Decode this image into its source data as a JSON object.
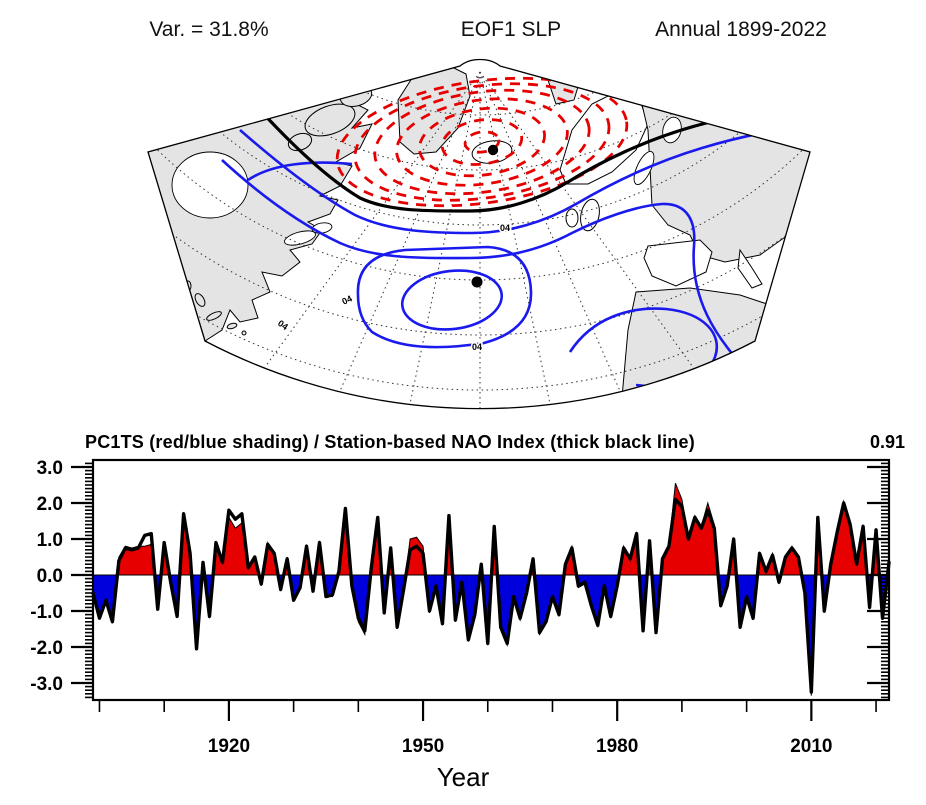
{
  "header": {
    "variance_label": "Var. = 31.8%",
    "title": "EOF1 SLP",
    "period_label": "Annual 1899-2022"
  },
  "map": {
    "contour_label": "04",
    "station_marker_count": 2
  },
  "timeseries": {
    "title": "PC1TS (red/blue shading) / Station-based NAO Index (thick black line)",
    "correlation": "0.91",
    "xlabel": "Year",
    "y_tick_labels": [
      "3.0",
      "2.0",
      "1.0",
      "0.0",
      "-1.0",
      "-2.0",
      "-3.0"
    ],
    "y_tick_values": [
      3,
      2,
      1,
      0,
      -1,
      -2,
      -3
    ],
    "x_tick_labels": [
      "1920",
      "1950",
      "1980",
      "2010"
    ],
    "x_tick_values": [
      1920,
      1950,
      1980,
      2010
    ]
  },
  "colors": {
    "background": "#ffffff",
    "positive_shading": "#e60000",
    "negative_shading": "#0000dd",
    "nao_line": "#000000",
    "map_negative_contour": "#e60000",
    "map_positive_contour": "#1a1aee",
    "map_zero_contour": "#000000",
    "land_shading": "#e4e4e4"
  },
  "chart_data": {
    "type": "line",
    "title": "PC1TS (red/blue shading) / Station-based NAO Index (thick black line)",
    "annotation": "0.91",
    "xlabel": "Year",
    "ylabel": "",
    "xlim": [
      1899,
      2022
    ],
    "ylim": [
      -3.5,
      3.2
    ],
    "xticks": [
      1920,
      1950,
      1980,
      2010
    ],
    "yticks": [
      -3,
      -2,
      -1,
      0,
      1,
      2,
      3
    ],
    "grid": false,
    "legend_position": "none",
    "x": [
      1899,
      1900,
      1901,
      1902,
      1903,
      1904,
      1905,
      1906,
      1907,
      1908,
      1909,
      1910,
      1911,
      1912,
      1913,
      1914,
      1915,
      1916,
      1917,
      1918,
      1919,
      1920,
      1921,
      1922,
      1923,
      1924,
      1925,
      1926,
      1927,
      1928,
      1929,
      1930,
      1931,
      1932,
      1933,
      1934,
      1935,
      1936,
      1937,
      1938,
      1939,
      1940,
      1941,
      1942,
      1943,
      1944,
      1945,
      1946,
      1947,
      1948,
      1949,
      1950,
      1951,
      1952,
      1953,
      1954,
      1955,
      1956,
      1957,
      1958,
      1959,
      1960,
      1961,
      1962,
      1963,
      1964,
      1965,
      1966,
      1967,
      1968,
      1969,
      1970,
      1971,
      1972,
      1973,
      1974,
      1975,
      1976,
      1977,
      1978,
      1979,
      1980,
      1981,
      1982,
      1983,
      1984,
      1985,
      1986,
      1987,
      1988,
      1989,
      1990,
      1991,
      1992,
      1993,
      1994,
      1995,
      1996,
      1997,
      1998,
      1999,
      2000,
      2001,
      2002,
      2003,
      2004,
      2005,
      2006,
      2007,
      2008,
      2009,
      2010,
      2011,
      2012,
      2013,
      2014,
      2015,
      2016,
      2017,
      2018,
      2019,
      2020,
      2021,
      2022
    ],
    "series": [
      {
        "name": "PC1TS",
        "type": "area",
        "style": "red shading above zero, blue shading below zero",
        "values": [
          -0.45,
          -1.1,
          -0.75,
          -1.25,
          0.5,
          0.8,
          0.75,
          0.8,
          0.8,
          0.85,
          -0.9,
          0.85,
          -0.25,
          -1.1,
          1.75,
          0.55,
          -1.95,
          0.3,
          -1.2,
          0.85,
          0.3,
          1.6,
          1.3,
          1.45,
          0.25,
          0.45,
          -0.3,
          0.9,
          0.55,
          -0.45,
          0.5,
          -0.65,
          -0.4,
          0.85,
          -0.4,
          0.95,
          -0.55,
          -0.6,
          0.15,
          1.75,
          -0.35,
          -1.3,
          -1.65,
          0.15,
          1.5,
          -1.1,
          0.7,
          -1.5,
          -0.45,
          1.0,
          1.05,
          0.8,
          -1.05,
          -0.35,
          -1.4,
          1.55,
          -1.3,
          -0.25,
          -1.85,
          -1.15,
          0.25,
          -1.95,
          1.25,
          -1.5,
          -1.95,
          -0.65,
          -1.25,
          -0.55,
          0.4,
          -1.65,
          -1.35,
          -0.65,
          -1.15,
          0.35,
          0.8,
          -0.35,
          -0.25,
          -0.9,
          -1.45,
          -0.35,
          -1.2,
          -0.35,
          0.8,
          0.4,
          1.2,
          -1.5,
          0.9,
          -1.55,
          0.4,
          0.85,
          2.55,
          2.1,
          1.05,
          1.65,
          1.35,
          2.0,
          1.4,
          -0.9,
          -0.35,
          0.9,
          -1.5,
          -0.65,
          -1.25,
          0.65,
          0.05,
          0.6,
          -0.25,
          0.55,
          0.8,
          0.55,
          -0.55,
          -3.35,
          1.55,
          -1.05,
          0.25,
          1.25,
          2.05,
          1.45,
          0.35,
          1.4,
          -0.95,
          1.3,
          -1.25,
          0.3
        ]
      },
      {
        "name": "Station-based NAO Index",
        "type": "line",
        "style": "thick black line",
        "values": [
          -0.5,
          -1.2,
          -0.7,
          -1.3,
          0.4,
          0.75,
          0.7,
          0.75,
          1.1,
          1.15,
          -0.95,
          0.9,
          -0.2,
          -1.15,
          1.7,
          0.6,
          -2.05,
          0.35,
          -1.15,
          0.9,
          0.35,
          1.8,
          1.55,
          1.7,
          0.2,
          0.5,
          -0.25,
          0.85,
          0.6,
          -0.4,
          0.45,
          -0.7,
          -0.35,
          0.8,
          -0.45,
          0.9,
          -0.6,
          -0.55,
          0.1,
          1.85,
          -0.3,
          -1.2,
          -1.55,
          0.2,
          1.6,
          -1.05,
          0.75,
          -1.45,
          -0.4,
          0.7,
          0.8,
          0.6,
          -1.0,
          -0.3,
          -1.35,
          1.65,
          -1.25,
          -0.2,
          -1.8,
          -1.1,
          0.3,
          -1.9,
          1.35,
          -1.45,
          -1.9,
          -0.6,
          -1.2,
          -0.5,
          0.45,
          -1.6,
          -1.3,
          -0.6,
          -1.1,
          0.3,
          0.75,
          -0.3,
          -0.2,
          -0.85,
          -1.4,
          -0.3,
          -1.15,
          -0.3,
          0.75,
          0.45,
          1.15,
          -1.55,
          0.95,
          -1.6,
          0.45,
          0.8,
          2.1,
          1.9,
          1.0,
          1.6,
          1.3,
          1.8,
          1.3,
          -0.85,
          -0.3,
          1.0,
          -1.45,
          -0.6,
          -1.2,
          0.6,
          0.1,
          0.55,
          -0.2,
          0.5,
          0.75,
          0.5,
          -0.5,
          -3.25,
          1.6,
          -1.0,
          0.3,
          1.2,
          2.0,
          1.4,
          0.3,
          1.35,
          -0.9,
          1.25,
          -1.2,
          0.35
        ]
      }
    ]
  }
}
